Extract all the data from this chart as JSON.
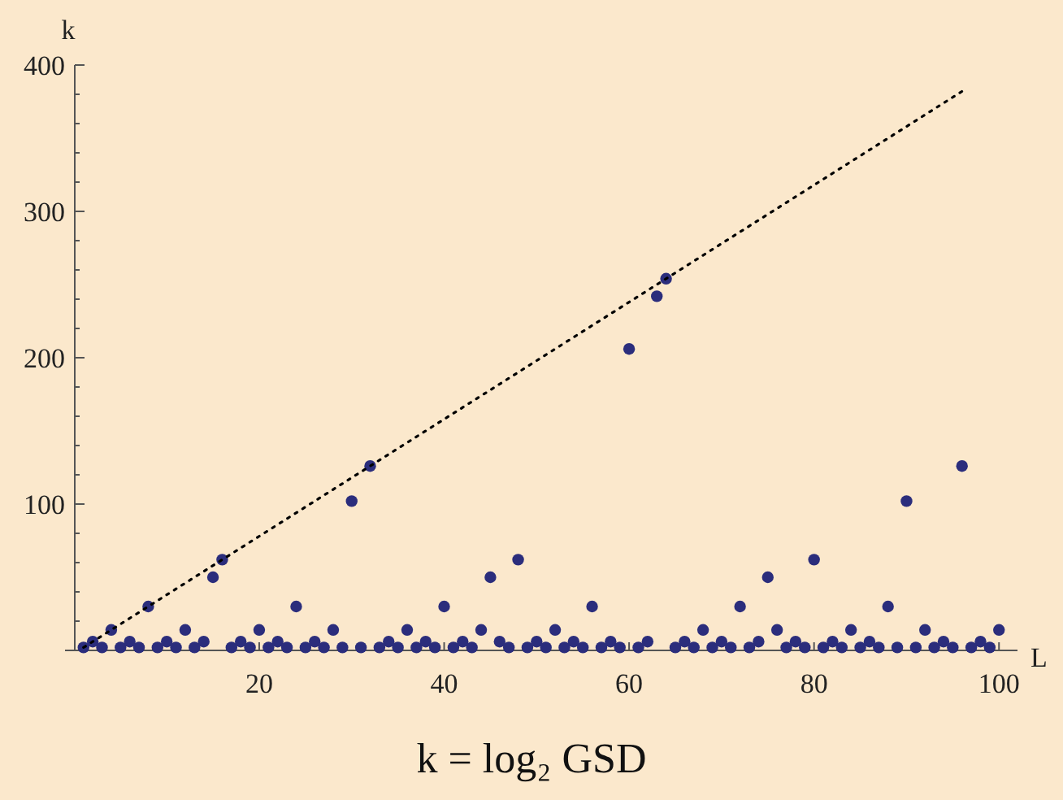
{
  "chart_data": {
    "type": "scatter",
    "xlabel": "L",
    "ylabel": "k",
    "annotations": [
      "k = log₂ GSD"
    ],
    "xlim": [
      -1,
      102
    ],
    "xticks": [
      20,
      40,
      60,
      80,
      100
    ],
    "ylim": [
      0,
      400
    ],
    "yticks": [
      {
        "value": 20,
        "label": null
      },
      {
        "value": 40,
        "label": null
      },
      {
        "value": 60,
        "label": null
      },
      {
        "value": 80,
        "label": null
      },
      100,
      {
        "value": 120,
        "label": null
      },
      {
        "value": 140,
        "label": null
      },
      {
        "value": 160,
        "label": null
      },
      {
        "value": 180,
        "label": null
      },
      200,
      {
        "value": 220,
        "label": null
      },
      {
        "value": 240,
        "label": null
      },
      {
        "value": 260,
        "label": null
      },
      {
        "value": 280,
        "label": null
      },
      300,
      {
        "value": 320,
        "label": null
      },
      {
        "value": 340,
        "label": null
      },
      {
        "value": 360,
        "label": null
      },
      {
        "value": 380,
        "label": null
      },
      400
    ],
    "marker": "circle",
    "grid": false,
    "series": [
      {
        "color": "#2b2d7c",
        "x": [
          1,
          2,
          3,
          4,
          5,
          6,
          7,
          8,
          9,
          10,
          11,
          12,
          13,
          14,
          15,
          16,
          17,
          18,
          19,
          20,
          21,
          22,
          23,
          24,
          25,
          26,
          27,
          28,
          29,
          30,
          31,
          32,
          33,
          34,
          35,
          36,
          37,
          38,
          39,
          40,
          41,
          42,
          43,
          44,
          45,
          46,
          47,
          48,
          49,
          50,
          51,
          52,
          53,
          54,
          55,
          56,
          57,
          58,
          59,
          60,
          61,
          62,
          63,
          64,
          65,
          66,
          67,
          68,
          69,
          70,
          71,
          72,
          73,
          74,
          75,
          76,
          77,
          78,
          79,
          80,
          81,
          82,
          83,
          84,
          85,
          86,
          87,
          88,
          89,
          90,
          91,
          92,
          93,
          94,
          95,
          96,
          97,
          98,
          99,
          100
        ],
        "values": [
          2,
          6,
          2,
          14,
          2,
          6,
          2,
          30,
          2,
          6,
          2,
          14,
          2,
          6,
          50,
          62,
          2,
          6,
          2,
          14,
          2,
          6,
          2,
          30,
          2,
          6,
          2,
          14,
          2,
          102,
          2,
          126,
          2,
          6,
          2,
          14,
          2,
          6,
          2,
          30,
          2,
          6,
          2,
          14,
          50,
          6,
          2,
          62,
          2,
          6,
          2,
          14,
          2,
          6,
          2,
          30,
          2,
          6,
          2,
          206,
          2,
          6,
          242,
          254,
          2,
          6,
          2,
          14,
          2,
          6,
          2,
          30,
          2,
          6,
          50,
          14,
          2,
          6,
          2,
          62,
          2,
          6,
          2,
          14,
          2,
          6,
          2,
          30,
          2,
          102,
          2,
          14,
          2,
          6,
          2,
          126,
          2,
          6,
          2,
          14
        ]
      },
      {
        "type": "line",
        "color": "#000000",
        "line_style": "dotted",
        "marker": "none",
        "x": [
          1,
          96
        ],
        "values": [
          2,
          382
        ]
      }
    ]
  }
}
